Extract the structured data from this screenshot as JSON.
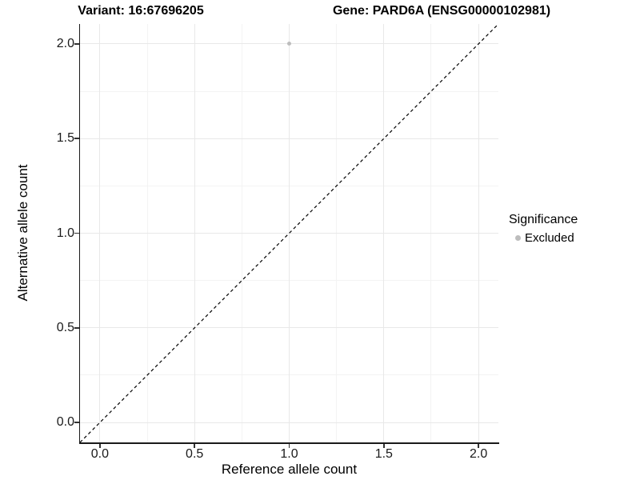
{
  "header": {
    "variant_title": "Variant: 16:67696205",
    "gene_title": "Gene: PARD6A (ENSG00000102981)"
  },
  "chart_data": {
    "type": "scatter",
    "title": "Variant: 16:67696205  —  Gene: PARD6A (ENSG00000102981)",
    "xlabel": "Reference allele count",
    "ylabel": "Alternative allele count",
    "xlim": [
      -0.105,
      2.105
    ],
    "ylim": [
      -0.105,
      2.105
    ],
    "x_ticks": [
      0.0,
      0.5,
      1.0,
      1.5,
      2.0
    ],
    "y_ticks": [
      0.0,
      0.5,
      1.0,
      1.5,
      2.0
    ],
    "x_tick_labels": [
      "0.0",
      "0.5",
      "1.0",
      "1.5",
      "2.0"
    ],
    "y_tick_labels": [
      "0.0",
      "0.5",
      "1.0",
      "1.5",
      "2.0"
    ],
    "minor_ticks": [
      0.25,
      0.75,
      1.25,
      1.75
    ],
    "grid": true,
    "points": [
      {
        "x": 1.0,
        "y": 2.0,
        "series": "Excluded"
      }
    ],
    "identity_line": {
      "style": "dashed",
      "from": [
        -0.105,
        -0.105
      ],
      "to": [
        2.105,
        2.105
      ],
      "color": "#000000"
    },
    "legend": {
      "title": "Significance",
      "position": "right",
      "entries": [
        {
          "label": "Excluded",
          "color": "#bdbdbd"
        }
      ]
    },
    "colors": {
      "point": "#bdbdbd",
      "grid_major": "#e8e8e8",
      "grid_minor": "#f3f3f3",
      "axis": "#1a1a1a"
    }
  }
}
